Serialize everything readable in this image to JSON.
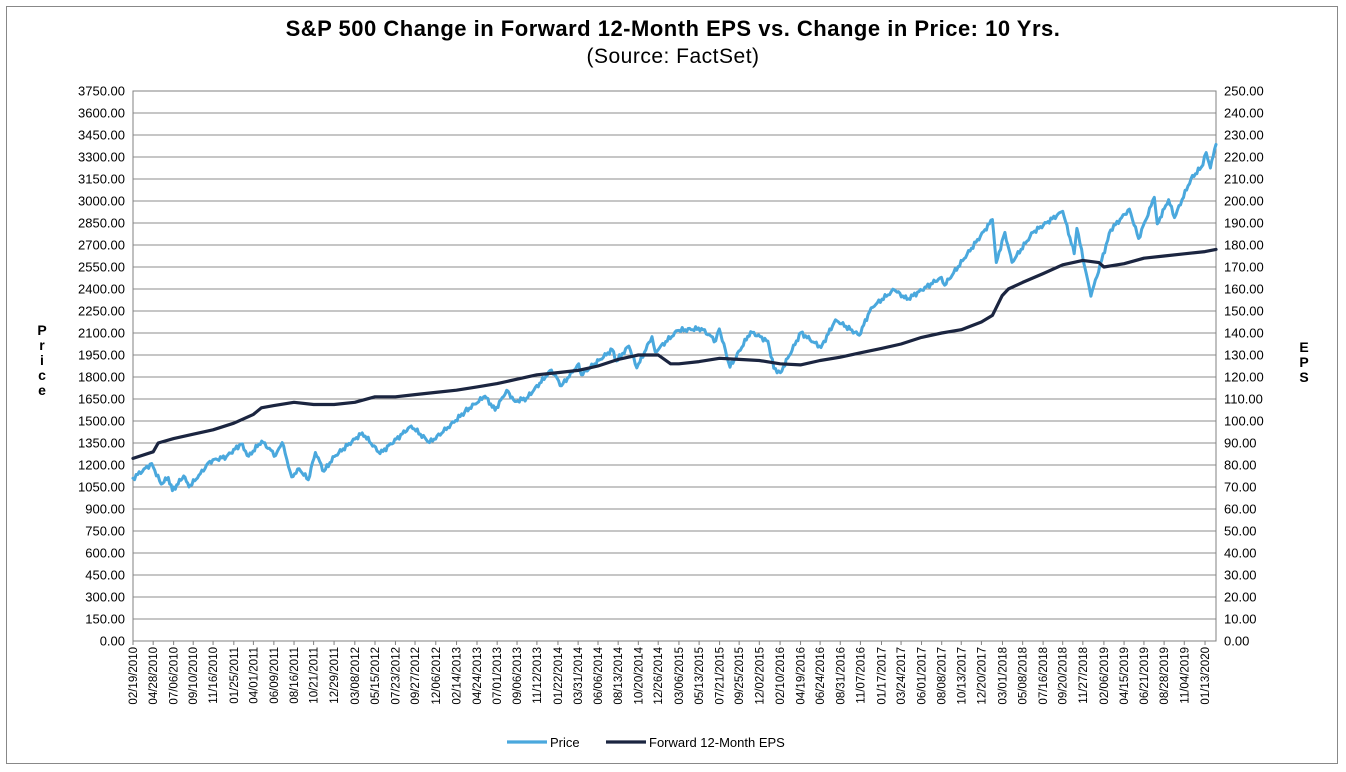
{
  "chart_data": {
    "type": "line",
    "title": "S&P 500 Change in Forward 12-Month EPS vs. Change in Price: 10 Yrs.",
    "subtitle": "(Source: FactSet)",
    "ylabel_left": "Price",
    "ylabel_right": "EPS",
    "ylim_left": [
      0,
      3750
    ],
    "ylim_right": [
      0,
      250
    ],
    "left_ticks": [
      "0.00",
      "150.00",
      "300.00",
      "450.00",
      "600.00",
      "750.00",
      "900.00",
      "1050.00",
      "1200.00",
      "1350.00",
      "1500.00",
      "1650.00",
      "1800.00",
      "1950.00",
      "2100.00",
      "2250.00",
      "2400.00",
      "2550.00",
      "2700.00",
      "2850.00",
      "3000.00",
      "3150.00",
      "3300.00",
      "3450.00",
      "3600.00",
      "3750.00"
    ],
    "right_ticks": [
      "0.00",
      "10.00",
      "20.00",
      "30.00",
      "40.00",
      "50.00",
      "60.00",
      "70.00",
      "80.00",
      "90.00",
      "100.00",
      "110.00",
      "120.00",
      "130.00",
      "140.00",
      "150.00",
      "160.00",
      "170.00",
      "180.00",
      "190.00",
      "200.00",
      "210.00",
      "220.00",
      "230.00",
      "240.00",
      "250.00"
    ],
    "x_ticks": [
      "02/19/2010",
      "04/28/2010",
      "07/06/2010",
      "09/10/2010",
      "11/16/2010",
      "01/25/2011",
      "04/01/2011",
      "06/09/2011",
      "08/16/2011",
      "10/21/2011",
      "12/29/2011",
      "03/08/2012",
      "05/15/2012",
      "07/23/2012",
      "09/27/2012",
      "12/06/2012",
      "02/14/2013",
      "04/24/2013",
      "07/01/2013",
      "09/06/2013",
      "11/12/2013",
      "01/22/2014",
      "03/31/2014",
      "06/06/2014",
      "08/13/2014",
      "10/20/2014",
      "12/26/2014",
      "03/06/2015",
      "05/13/2015",
      "07/21/2015",
      "09/25/2015",
      "12/02/2015",
      "02/10/2016",
      "04/19/2016",
      "06/24/2016",
      "08/31/2016",
      "11/07/2016",
      "01/17/2017",
      "03/24/2017",
      "06/01/2017",
      "08/08/2017",
      "10/13/2017",
      "12/20/2017",
      "03/01/2018",
      "05/08/2018",
      "07/16/2018",
      "09/20/2018",
      "11/27/2018",
      "02/06/2019",
      "04/15/2019",
      "06/21/2019",
      "08/28/2019",
      "11/04/2019",
      "01/13/2020"
    ],
    "x_range": [
      "02/19/2010",
      "02/19/2020"
    ],
    "grid": true,
    "legend_position": "bottom-center",
    "series": [
      {
        "name": "Price",
        "axis": "left",
        "color": "#4aa8dd",
        "points": [
          [
            "02/19/2010",
            1110
          ],
          [
            "04/23/2010",
            1210
          ],
          [
            "05/25/2010",
            1070
          ],
          [
            "06/18/2010",
            1115
          ],
          [
            "07/02/2010",
            1025
          ],
          [
            "08/09/2010",
            1125
          ],
          [
            "08/27/2010",
            1050
          ],
          [
            "10/04/2010",
            1140
          ],
          [
            "11/05/2010",
            1225
          ],
          [
            "12/31/2010",
            1258
          ],
          [
            "02/18/2011",
            1343
          ],
          [
            "03/16/2011",
            1260
          ],
          [
            "04/29/2011",
            1363
          ],
          [
            "06/15/2011",
            1265
          ],
          [
            "07/07/2011",
            1353
          ],
          [
            "08/08/2011",
            1119
          ],
          [
            "09/02/2011",
            1175
          ],
          [
            "10/03/2011",
            1099
          ],
          [
            "10/27/2011",
            1285
          ],
          [
            "11/25/2011",
            1158
          ],
          [
            "12/30/2011",
            1258
          ],
          [
            "04/02/2012",
            1419
          ],
          [
            "06/01/2012",
            1278
          ],
          [
            "09/14/2012",
            1466
          ],
          [
            "11/15/2012",
            1353
          ],
          [
            "12/31/2012",
            1426
          ],
          [
            "03/14/2013",
            1563
          ],
          [
            "05/21/2013",
            1669
          ],
          [
            "06/24/2013",
            1573
          ],
          [
            "08/02/2013",
            1709
          ],
          [
            "08/30/2013",
            1633
          ],
          [
            "10/08/2013",
            1655
          ],
          [
            "12/31/2013",
            1848
          ],
          [
            "02/03/2014",
            1741
          ],
          [
            "04/02/2014",
            1890
          ],
          [
            "04/11/2014",
            1815
          ],
          [
            "07/24/2014",
            1987
          ],
          [
            "08/07/2014",
            1909
          ],
          [
            "09/18/2014",
            2011
          ],
          [
            "10/15/2014",
            1862
          ],
          [
            "12/05/2014",
            2075
          ],
          [
            "12/16/2014",
            1972
          ],
          [
            "03/02/2015",
            2117
          ],
          [
            "05/21/2015",
            2131
          ],
          [
            "07/08/2015",
            2046
          ],
          [
            "07/20/2015",
            2128
          ],
          [
            "08/25/2015",
            1867
          ],
          [
            "11/03/2015",
            2109
          ],
          [
            "12/31/2015",
            2044
          ],
          [
            "01/20/2016",
            1859
          ],
          [
            "02/11/2016",
            1829
          ],
          [
            "04/20/2016",
            2102
          ],
          [
            "06/27/2016",
            2001
          ],
          [
            "08/15/2016",
            2190
          ],
          [
            "11/03/2016",
            2085
          ],
          [
            "12/13/2016",
            2271
          ],
          [
            "03/01/2017",
            2395
          ],
          [
            "04/13/2017",
            2329
          ],
          [
            "08/07/2017",
            2480
          ],
          [
            "08/18/2017",
            2426
          ],
          [
            "01/26/2018",
            2873
          ],
          [
            "02/08/2018",
            2581
          ],
          [
            "03/09/2018",
            2786
          ],
          [
            "04/02/2018",
            2582
          ],
          [
            "06/12/2018",
            2786
          ],
          [
            "09/20/2018",
            2930
          ],
          [
            "10/29/2018",
            2641
          ],
          [
            "11/07/2018",
            2813
          ],
          [
            "12/24/2018",
            2351
          ],
          [
            "03/01/2019",
            2803
          ],
          [
            "05/03/2019",
            2945
          ],
          [
            "06/03/2019",
            2744
          ],
          [
            "07/26/2019",
            3025
          ],
          [
            "08/05/2019",
            2844
          ],
          [
            "09/12/2019",
            3009
          ],
          [
            "10/02/2019",
            2887
          ],
          [
            "11/27/2019",
            3153
          ],
          [
            "12/31/2019",
            3230
          ],
          [
            "01/17/2020",
            3330
          ],
          [
            "01/31/2020",
            3225
          ],
          [
            "02/19/2020",
            3386
          ]
        ]
      },
      {
        "name": "Forward 12-Month EPS",
        "axis": "right",
        "color": "#1b2540",
        "points": [
          [
            "02/19/2010",
            83
          ],
          [
            "04/28/2010",
            86
          ],
          [
            "05/15/2010",
            90
          ],
          [
            "07/06/2010",
            92
          ],
          [
            "09/10/2010",
            94
          ],
          [
            "11/16/2010",
            96
          ],
          [
            "01/25/2011",
            99
          ],
          [
            "04/01/2011",
            103
          ],
          [
            "04/28/2011",
            106
          ],
          [
            "06/09/2011",
            107
          ],
          [
            "08/16/2011",
            108.5
          ],
          [
            "10/21/2011",
            107.5
          ],
          [
            "12/29/2011",
            107.5
          ],
          [
            "03/08/2012",
            108.5
          ],
          [
            "05/15/2012",
            111
          ],
          [
            "07/23/2012",
            111
          ],
          [
            "09/27/2012",
            112
          ],
          [
            "12/06/2012",
            113
          ],
          [
            "02/14/2013",
            114
          ],
          [
            "04/24/2013",
            115.5
          ],
          [
            "07/01/2013",
            117
          ],
          [
            "09/06/2013",
            119
          ],
          [
            "11/12/2013",
            121
          ],
          [
            "01/22/2014",
            122
          ],
          [
            "03/31/2014",
            123
          ],
          [
            "06/06/2014",
            125
          ],
          [
            "08/13/2014",
            128
          ],
          [
            "10/20/2014",
            130
          ],
          [
            "12/26/2014",
            130
          ],
          [
            "02/06/2015",
            126
          ],
          [
            "03/06/2015",
            126
          ],
          [
            "05/13/2015",
            127
          ],
          [
            "07/21/2015",
            128.5
          ],
          [
            "09/25/2015",
            128
          ],
          [
            "12/02/2015",
            127.5
          ],
          [
            "02/10/2016",
            126
          ],
          [
            "04/19/2016",
            125.5
          ],
          [
            "06/24/2016",
            127.5
          ],
          [
            "08/31/2016",
            129
          ],
          [
            "11/07/2016",
            131
          ],
          [
            "01/17/2017",
            133
          ],
          [
            "03/24/2017",
            135
          ],
          [
            "06/01/2017",
            138
          ],
          [
            "08/08/2017",
            140
          ],
          [
            "10/13/2017",
            141.5
          ],
          [
            "12/20/2017",
            145
          ],
          [
            "01/26/2018",
            148
          ],
          [
            "02/28/2018",
            157
          ],
          [
            "03/21/2018",
            160
          ],
          [
            "05/08/2018",
            163
          ],
          [
            "07/16/2018",
            167
          ],
          [
            "09/20/2018",
            171
          ],
          [
            "11/27/2018",
            173
          ],
          [
            "01/20/2019",
            172
          ],
          [
            "02/06/2019",
            170
          ],
          [
            "04/15/2019",
            171.5
          ],
          [
            "06/21/2019",
            174
          ],
          [
            "08/28/2019",
            175
          ],
          [
            "11/04/2019",
            176
          ],
          [
            "01/13/2020",
            177
          ],
          [
            "02/19/2020",
            178
          ]
        ]
      }
    ]
  }
}
